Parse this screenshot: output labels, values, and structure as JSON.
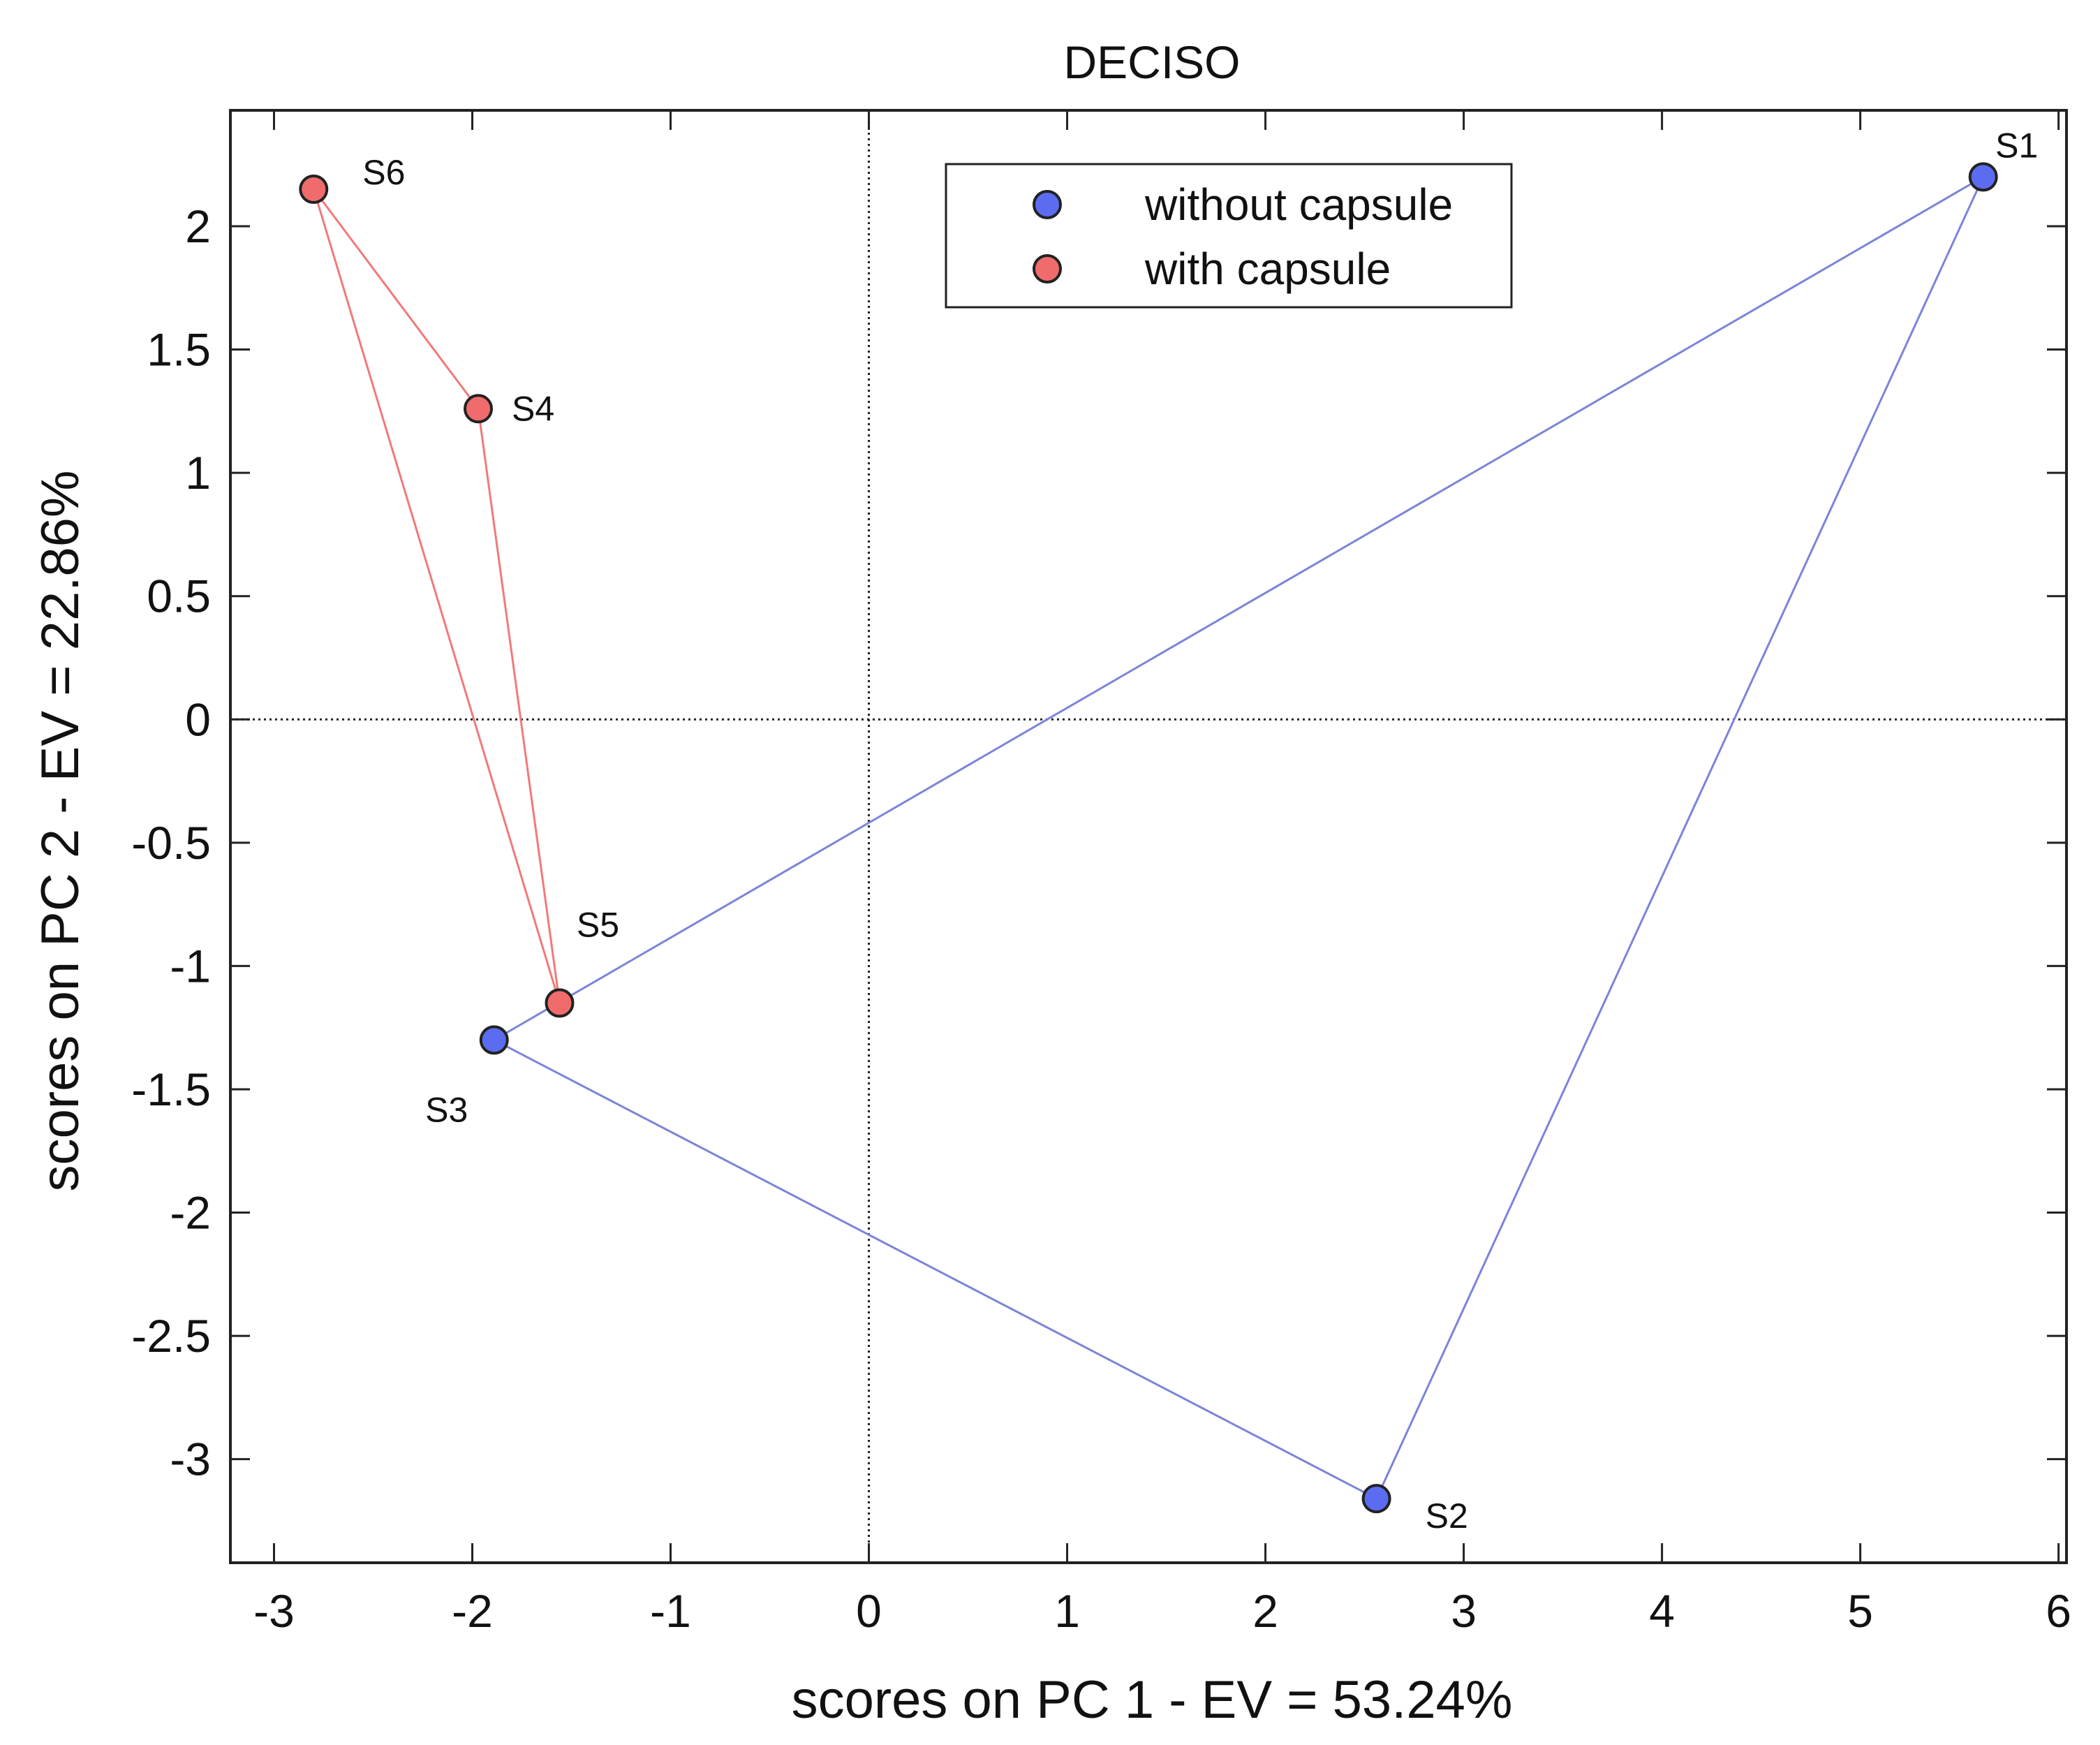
{
  "chart_data": {
    "type": "scatter",
    "title": "DECISO",
    "xlabel": "scores on PC 1 - EV = 53.24%",
    "ylabel": "scores on PC 2 - EV = 22.86%",
    "xlim": [
      -3.22,
      6.04
    ],
    "ylim": [
      -3.42,
      2.47
    ],
    "xticks": [
      -3,
      -2,
      -1,
      0,
      1,
      2,
      3,
      4,
      5,
      6
    ],
    "yticks": [
      -3,
      -2.5,
      -2,
      -1.5,
      -1,
      -0.5,
      0,
      0.5,
      1,
      1.5,
      2
    ],
    "grid": false,
    "legend_position": "top-center",
    "series": [
      {
        "name": "without capsule",
        "color": "#5b6cf0",
        "line_color": "#7b84d8",
        "points": [
          {
            "label": "S1",
            "x": 5.62,
            "y": 2.2
          },
          {
            "label": "S2",
            "x": 2.56,
            "y": -3.16
          },
          {
            "label": "S3",
            "x": -1.89,
            "y": -1.3
          }
        ]
      },
      {
        "name": "with capsule",
        "color": "#f06c6c",
        "line_color": "#f07a7a",
        "points": [
          {
            "label": "S4",
            "x": -1.97,
            "y": 1.26
          },
          {
            "label": "S5",
            "x": -1.56,
            "y": -1.15
          },
          {
            "label": "S6",
            "x": -2.8,
            "y": 2.15
          }
        ]
      }
    ]
  }
}
